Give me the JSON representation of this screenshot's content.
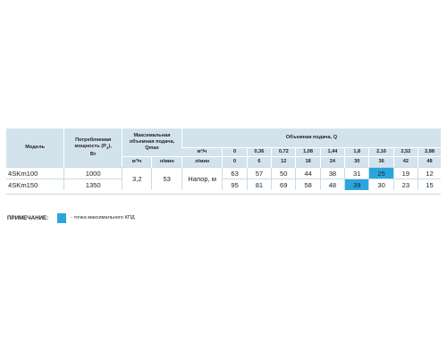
{
  "table": {
    "header": {
      "model": "Модель",
      "power_line1": "Потребляемая",
      "power_line2": "мощность (P",
      "power_sub": "1",
      "power_line2_end": "),",
      "power_line3": "Вт",
      "maxflow_line1": "Максимальная",
      "maxflow_line2": "объемная подача,",
      "maxflow_line3": "Qmax",
      "maxflow_unit1": "м³/ч",
      "maxflow_unit2": "л/мин",
      "flow_title": "Объемная подача, Q",
      "unit_m3h": "м³/ч",
      "unit_lmin": "л/мин",
      "flow_m3h": [
        "0",
        "0,36",
        "0,72",
        "1,08",
        "1,44",
        "1,8",
        "2,16",
        "2,52",
        "2,88"
      ],
      "flow_lmin": [
        "0",
        "6",
        "12",
        "18",
        "24",
        "30",
        "36",
        "42",
        "48"
      ]
    },
    "rows": [
      {
        "model": "4SKm100",
        "power": "1000",
        "heads": [
          "63",
          "57",
          "50",
          "44",
          "38",
          "31",
          "25",
          "19",
          "12"
        ],
        "max_index": 6
      },
      {
        "model": "4SKm150",
        "power": "1350",
        "heads": [
          "95",
          "81",
          "69",
          "58",
          "48",
          "39",
          "30",
          "23",
          "15"
        ],
        "max_index": 5
      }
    ],
    "qmax_m3h": "3,2",
    "qmax_lmin": "53",
    "head_label": "Напор, м"
  },
  "note": {
    "label": "ПРИМЕЧАНИЕ:",
    "text": "- точка максимального КПД",
    "swatch_color": "#2aa6df"
  }
}
